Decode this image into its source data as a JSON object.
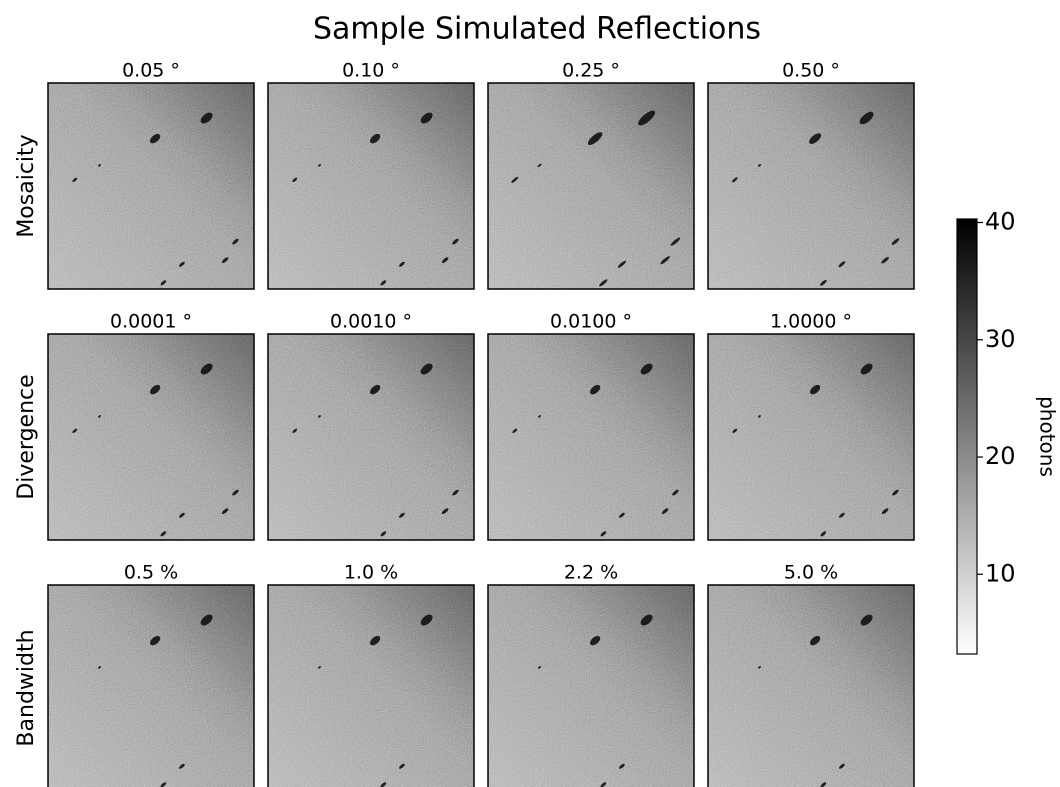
{
  "chart_data": {
    "type": "image_grid",
    "title": "Sample Simulated Reflections",
    "rows": [
      {
        "label": "Mosaicity",
        "panels": [
          "0.05 °",
          "0.10 °",
          "0.25 °",
          "0.50 °"
        ]
      },
      {
        "label": "Divergence",
        "panels": [
          "0.0001 °",
          "0.0010 °",
          "0.0100 °",
          "1.0000 °"
        ]
      },
      {
        "label": "Bandwidth",
        "panels": [
          "0.5 %",
          "1.0 %",
          "2.2 %",
          "5.0 %"
        ]
      }
    ],
    "colorbar": {
      "label": "photons",
      "lim": [
        3.2,
        40.3
      ],
      "ticks": [
        10,
        20,
        30,
        40
      ],
      "cmap": [
        "#ffffff",
        "#000000"
      ]
    }
  }
}
